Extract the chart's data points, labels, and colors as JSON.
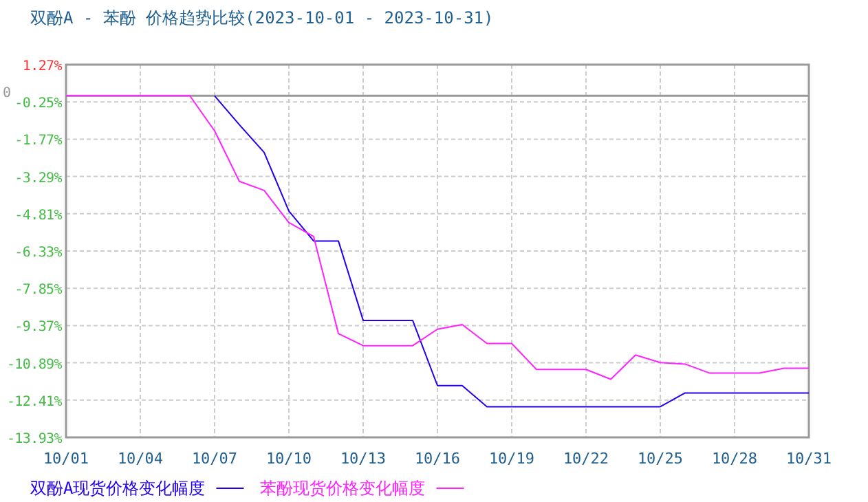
{
  "chart_data": {
    "type": "line",
    "title": "双酚A - 苯酚 价格趋势比较(2023-10-01 - 2023-10-31)",
    "x": [
      "2023-10-01",
      "2023-10-02",
      "2023-10-03",
      "2023-10-04",
      "2023-10-05",
      "2023-10-06",
      "2023-10-07",
      "2023-10-08",
      "2023-10-09",
      "2023-10-10",
      "2023-10-11",
      "2023-10-12",
      "2023-10-13",
      "2023-10-14",
      "2023-10-15",
      "2023-10-16",
      "2023-10-17",
      "2023-10-18",
      "2023-10-19",
      "2023-10-20",
      "2023-10-21",
      "2023-10-22",
      "2023-10-23",
      "2023-10-24",
      "2023-10-25",
      "2023-10-26",
      "2023-10-27",
      "2023-10-28",
      "2023-10-29",
      "2023-10-30",
      "2023-10-31"
    ],
    "series": [
      {
        "name": "双酚A现货价格变化幅度",
        "color": "#2200ee",
        "values": [
          null,
          null,
          null,
          null,
          null,
          null,
          0,
          -1.18,
          -2.31,
          -4.7,
          -5.92,
          -5.92,
          -9.16,
          -9.16,
          -9.16,
          -11.82,
          -11.82,
          -12.68,
          -12.68,
          -12.68,
          -12.68,
          -12.68,
          -12.68,
          -12.68,
          -12.68,
          -12.12,
          -12.12,
          -12.12,
          -12.12,
          -12.12,
          -12.12
        ]
      },
      {
        "name": "苯酚现货价格变化幅度",
        "color": "#ff22ff",
        "values": [
          0,
          0,
          0,
          0,
          0,
          0,
          -1.43,
          -3.49,
          -3.86,
          -5.17,
          -5.74,
          -9.7,
          -10.19,
          -10.19,
          -10.19,
          -9.52,
          -9.33,
          -10.1,
          -10.1,
          -11.16,
          -11.16,
          -11.16,
          -11.56,
          -10.57,
          -10.88,
          -10.94,
          -11.31,
          -11.31,
          -11.31,
          -11.11,
          -11.11
        ]
      }
    ],
    "xlim": [
      "2023-10-01",
      "2023-10-31"
    ],
    "xticks": [
      {
        "value": "2023-10-01",
        "label": "10/01"
      },
      {
        "value": "2023-10-04",
        "label": "10/04"
      },
      {
        "value": "2023-10-07",
        "label": "10/07"
      },
      {
        "value": "2023-10-10",
        "label": "10/10"
      },
      {
        "value": "2023-10-13",
        "label": "10/13"
      },
      {
        "value": "2023-10-16",
        "label": "10/16"
      },
      {
        "value": "2023-10-19",
        "label": "10/19"
      },
      {
        "value": "2023-10-22",
        "label": "10/22"
      },
      {
        "value": "2023-10-25",
        "label": "10/25"
      },
      {
        "value": "2023-10-28",
        "label": "10/28"
      },
      {
        "value": "2023-10-31",
        "label": "10/31"
      }
    ],
    "ylim": [
      -13.93,
      1.27
    ],
    "yticks": [
      {
        "value": 1.27,
        "label": "1.27%"
      },
      {
        "value": -0.25,
        "label": "-0.25%"
      },
      {
        "value": -1.77,
        "label": "-1.77%"
      },
      {
        "value": -3.29,
        "label": "-3.29%"
      },
      {
        "value": -4.81,
        "label": "-4.81%"
      },
      {
        "value": -6.33,
        "label": "-6.33%"
      },
      {
        "value": -7.85,
        "label": "-7.85%"
      },
      {
        "value": -9.37,
        "label": "-9.37%"
      },
      {
        "value": -10.89,
        "label": "-10.89%"
      },
      {
        "value": -12.41,
        "label": "-12.41%"
      },
      {
        "value": -13.93,
        "label": "-13.93%"
      }
    ],
    "ref_lines": [
      {
        "axis": "y",
        "value": 0,
        "label": "0",
        "color": "#999999"
      }
    ],
    "grid": true,
    "legend": "bottom",
    "line_style": "solid"
  }
}
